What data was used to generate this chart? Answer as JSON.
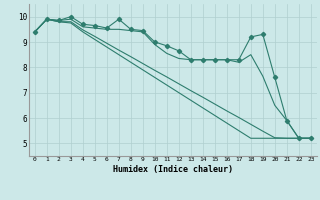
{
  "xlabel": "Humidex (Indice chaleur)",
  "bg_color": "#cce8e8",
  "grid_color": "#b0cfcf",
  "line_color": "#2e7d6e",
  "xlim": [
    -0.5,
    23.5
  ],
  "ylim": [
    4.5,
    10.5
  ],
  "yticks": [
    5,
    6,
    7,
    8,
    9,
    10
  ],
  "xticks": [
    0,
    1,
    2,
    3,
    4,
    5,
    6,
    7,
    8,
    9,
    10,
    11,
    12,
    13,
    14,
    15,
    16,
    17,
    18,
    19,
    20,
    21,
    22,
    23
  ],
  "series": [
    {
      "x": [
        0,
        1,
        2,
        3,
        4,
        5,
        6,
        7,
        8,
        9,
        10,
        11,
        12,
        13,
        14,
        15,
        16,
        17,
        18,
        19,
        20,
        21,
        22,
        23
      ],
      "y": [
        9.4,
        9.9,
        9.85,
        10.0,
        9.7,
        9.65,
        9.55,
        9.9,
        9.5,
        9.45,
        9.0,
        8.85,
        8.65,
        8.3,
        8.3,
        8.3,
        8.3,
        8.3,
        9.2,
        9.3,
        7.6,
        5.9,
        5.2,
        5.2
      ],
      "marker": true
    },
    {
      "x": [
        0,
        1,
        2,
        3,
        4,
        5,
        6,
        7,
        8,
        9,
        10,
        11,
        12,
        13,
        14,
        15,
        16,
        17,
        18,
        19,
        20,
        21,
        22,
        23
      ],
      "y": [
        9.4,
        9.9,
        9.85,
        9.9,
        9.6,
        9.55,
        9.5,
        9.5,
        9.45,
        9.4,
        8.9,
        8.55,
        8.35,
        8.3,
        8.3,
        8.3,
        8.3,
        8.2,
        8.5,
        7.65,
        6.5,
        5.9,
        5.2,
        5.2
      ],
      "marker": false
    },
    {
      "x": [
        0,
        1,
        2,
        3,
        4,
        5,
        6,
        7,
        8,
        9,
        10,
        11,
        12,
        13,
        14,
        15,
        16,
        17,
        18,
        19,
        20,
        21,
        22,
        23
      ],
      "y": [
        9.4,
        9.9,
        9.8,
        9.8,
        9.48,
        9.22,
        8.95,
        8.68,
        8.42,
        8.15,
        7.88,
        7.62,
        7.35,
        7.08,
        6.82,
        6.55,
        6.28,
        6.02,
        5.75,
        5.48,
        5.22,
        5.2,
        5.2,
        5.2
      ],
      "marker": false
    },
    {
      "x": [
        0,
        1,
        2,
        3,
        4,
        5,
        6,
        7,
        8,
        9,
        10,
        11,
        12,
        13,
        14,
        15,
        16,
        17,
        18,
        19,
        20,
        21,
        22,
        23
      ],
      "y": [
        9.4,
        9.9,
        9.8,
        9.75,
        9.4,
        9.1,
        8.8,
        8.5,
        8.2,
        7.9,
        7.6,
        7.3,
        7.0,
        6.7,
        6.4,
        6.1,
        5.8,
        5.5,
        5.2,
        5.2,
        5.2,
        5.2,
        5.2,
        5.2
      ],
      "marker": false
    }
  ]
}
